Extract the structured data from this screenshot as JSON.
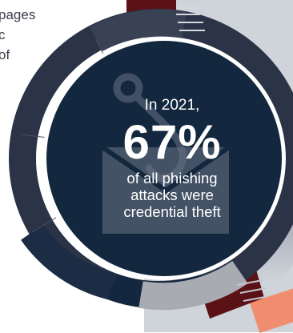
{
  "intro": {
    "lines": [
      "pages",
      "c",
      "of"
    ]
  },
  "stat": {
    "year_label": "In 2021,",
    "percent": "67%",
    "caption_lines": [
      "of all phishing",
      "attacks were",
      "credential theft"
    ]
  },
  "illustration": {
    "icon": "fishing-hook-icon",
    "secondary_icon": "envelope-icon"
  },
  "colors": {
    "navy": "#13283f",
    "ring_dark": "#2b3447",
    "ring_mid": "#3a4253",
    "ring_deep": "#1b2c44",
    "ring_gray": "#a9abb2",
    "accent_red": "#5a1216",
    "accent_salmon": "#f08d6e"
  }
}
